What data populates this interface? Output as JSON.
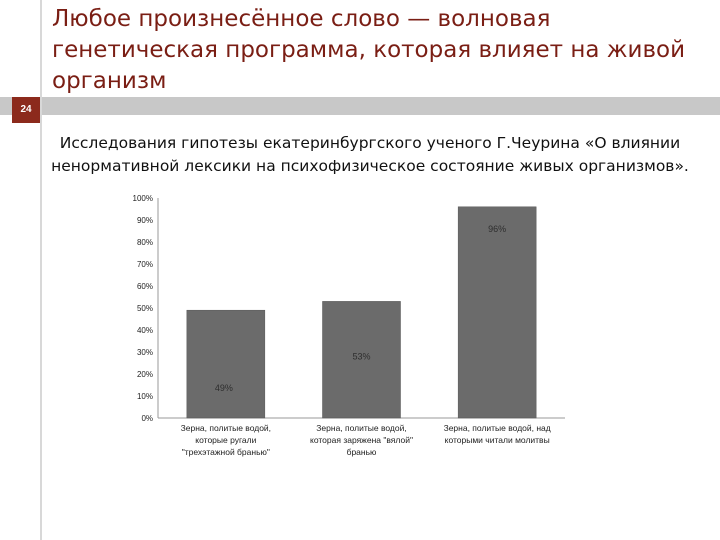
{
  "slide": {
    "title": "Любое произнесённое слово — волновая генетическая программа, которая влияет на живой организм",
    "number": "24",
    "subtitle": "Исследования  гипотезы екатеринбургского ученого Г.Чеурина «О влиянии ненормативной лексики на психофизическое состояние живых организмов»."
  },
  "colors": {
    "title": "#7a1e14",
    "accent": "#8c2a1c",
    "bar": "#6b6b6b"
  },
  "chart_data": {
    "type": "bar",
    "categories": [
      [
        "Зерна, политые водой,",
        "которые ругали",
        "\"трехэтажной бранью\""
      ],
      [
        "Зерна, политые водой,",
        "которая заряжена \"вялой\"",
        "бранью"
      ],
      [
        "Зерна, политые водой, над",
        "которыми читали молитвы"
      ]
    ],
    "values": [
      49,
      53,
      96
    ],
    "data_labels": [
      "49%",
      "53%",
      "96%"
    ],
    "ylim": [
      0,
      100
    ],
    "yticks": [
      "0%",
      "10%",
      "20%",
      "30%",
      "40%",
      "50%",
      "60%",
      "70%",
      "80%",
      "90%",
      "100%"
    ],
    "grid": false,
    "legend": "none"
  }
}
